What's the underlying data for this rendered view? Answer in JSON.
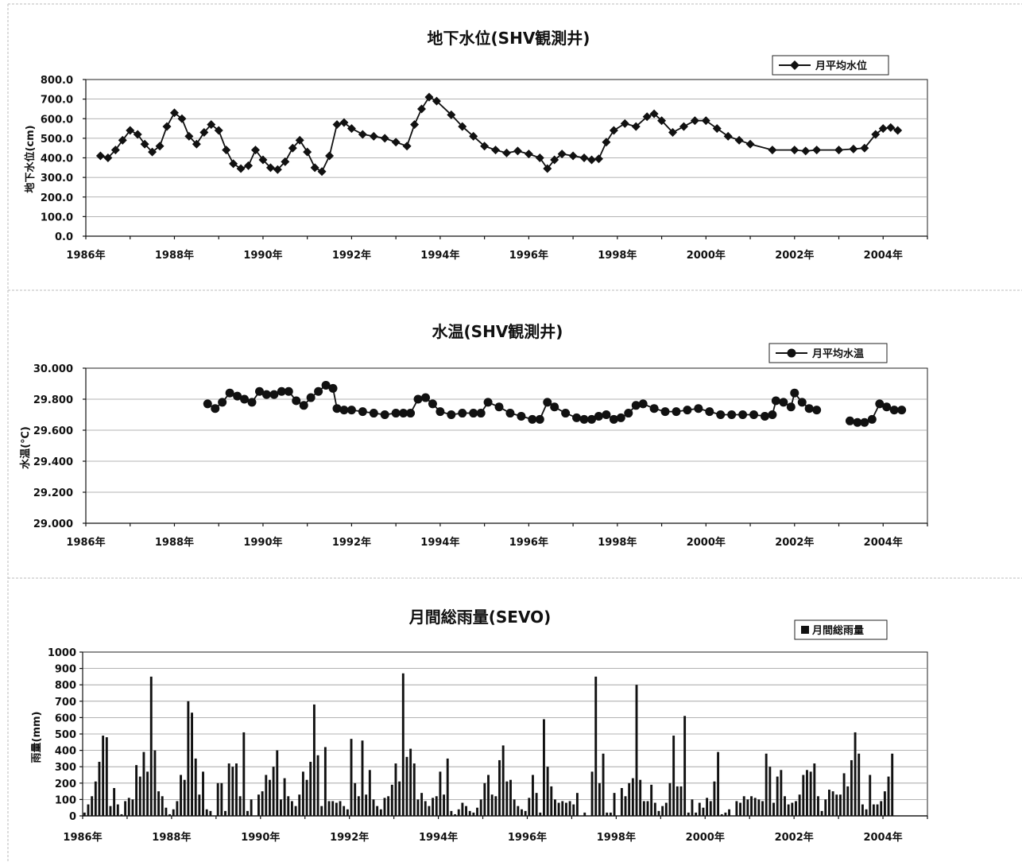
{
  "chart_data": [
    {
      "type": "line",
      "title": "地下水位(SHV観測井)",
      "ylabel": "地下水位(cm)",
      "xlabel": "",
      "ylim": [
        0,
        800
      ],
      "yticks": [
        "0.0",
        "100.0",
        "200.0",
        "300.0",
        "400.0",
        "500.0",
        "600.0",
        "700.0",
        "800.0"
      ],
      "xlim": [
        1986,
        2005
      ],
      "xticks": [
        "1986年",
        "1988年",
        "1990年",
        "1992年",
        "1994年",
        "1996年",
        "1998年",
        "2000年",
        "2002年",
        "2004年"
      ],
      "grid": true,
      "legend": "top-right",
      "marker": "diamond",
      "series": [
        {
          "name": "月平均水位",
          "x": [
            1986.33,
            1986.5,
            1986.67,
            1986.83,
            1987.0,
            1987.17,
            1987.33,
            1987.5,
            1987.67,
            1987.83,
            1988.0,
            1988.17,
            1988.33,
            1988.5,
            1988.67,
            1988.83,
            1989.0,
            1989.17,
            1989.33,
            1989.5,
            1989.67,
            1989.83,
            1990.0,
            1990.17,
            1990.33,
            1990.5,
            1990.67,
            1990.83,
            1991.0,
            1991.17,
            1991.33,
            1991.5,
            1991.67,
            1991.83,
            1992.0,
            1992.25,
            1992.5,
            1992.75,
            1993.0,
            1993.25,
            1993.42,
            1993.58,
            1993.75,
            1993.92,
            1994.25,
            1994.5,
            1994.75,
            1995.0,
            1995.25,
            1995.5,
            1995.75,
            1996.0,
            1996.25,
            1996.42,
            1996.58,
            1996.75,
            1997.0,
            1997.25,
            1997.42,
            1997.58,
            1997.75,
            1997.92,
            1998.17,
            1998.42,
            1998.67,
            1998.83,
            1999.0,
            1999.25,
            1999.5,
            1999.75,
            2000.0,
            2000.25,
            2000.5,
            2000.75,
            2001.0,
            2001.5,
            2002.0,
            2002.25,
            2002.5,
            2003.0,
            2003.33,
            2003.58,
            2003.83,
            2004.0,
            2004.17,
            2004.33
          ],
          "values": [
            410,
            400,
            440,
            490,
            540,
            520,
            470,
            430,
            460,
            560,
            630,
            600,
            510,
            470,
            530,
            570,
            540,
            440,
            370,
            345,
            360,
            440,
            390,
            350,
            340,
            380,
            450,
            490,
            430,
            350,
            330,
            410,
            570,
            580,
            550,
            520,
            510,
            500,
            480,
            460,
            570,
            650,
            710,
            690,
            620,
            560,
            510,
            460,
            440,
            425,
            435,
            420,
            400,
            345,
            390,
            420,
            410,
            400,
            390,
            395,
            480,
            540,
            575,
            560,
            610,
            625,
            590,
            530,
            560,
            590,
            590,
            550,
            510,
            490,
            470,
            440,
            440,
            435,
            440,
            440,
            445,
            450,
            520,
            550,
            555,
            540
          ]
        }
      ]
    },
    {
      "type": "line",
      "title": "水温(SHV観測井)",
      "ylabel": "水温(℃)",
      "xlabel": "",
      "ylim": [
        29.0,
        30.0
      ],
      "yticks": [
        "29.000",
        "29.200",
        "29.400",
        "29.600",
        "29.800",
        "30.000"
      ],
      "xlim": [
        1986,
        2005
      ],
      "xticks": [
        "1986年",
        "1988年",
        "1990年",
        "1992年",
        "1994年",
        "1996年",
        "1998年",
        "2000年",
        "2002年",
        "2004年"
      ],
      "grid": true,
      "legend": "top-right",
      "marker": "circle",
      "series": [
        {
          "name": "月平均水温",
          "segments": [
            {
              "x": [
                1988.75,
                1988.92,
                1989.08,
                1989.25,
                1989.42,
                1989.58,
                1989.75,
                1989.92,
                1990.08,
                1990.25,
                1990.42,
                1990.58,
                1990.75,
                1990.92,
                1991.08,
                1991.25,
                1991.42,
                1991.58,
                1991.67,
                1991.83,
                1992.0,
                1992.25,
                1992.5,
                1992.75,
                1993.0,
                1993.17,
                1993.33,
                1993.5,
                1993.67,
                1993.83,
                1994.0,
                1994.25,
                1994.5,
                1994.75,
                1994.92,
                1995.08,
                1995.33,
                1995.58,
                1995.83,
                1996.08,
                1996.25,
                1996.42,
                1996.58,
                1996.83,
                1997.08,
                1997.25
              ],
              "values": [
                29.77,
                29.74,
                29.78,
                29.84,
                29.82,
                29.8,
                29.78,
                29.85,
                29.83,
                29.83,
                29.85,
                29.85,
                29.79,
                29.76,
                29.81,
                29.85,
                29.89,
                29.87,
                29.74,
                29.73,
                29.73,
                29.72,
                29.71,
                29.7,
                29.71,
                29.71,
                29.71,
                29.8,
                29.81,
                29.77,
                29.72,
                29.7,
                29.71,
                29.71,
                29.71,
                29.78,
                29.75,
                29.71,
                29.69,
                29.67,
                29.67,
                29.78,
                29.75,
                29.71,
                29.68,
                29.67
              ]
            },
            {
              "x": [
                1997.42,
                1997.58,
                1997.75,
                1997.92,
                1998.08,
                1998.25,
                1998.42,
                1998.58,
                1998.83,
                1999.08,
                1999.33,
                1999.58,
                1999.83,
                2000.08,
                2000.33,
                2000.58,
                2000.83,
                2001.08,
                2001.33,
                2001.5,
                2001.58,
                2001.75,
                2001.92,
                2002.0,
                2002.17,
                2002.33,
                2002.5
              ],
              "values": [
                29.67,
                29.69,
                29.7,
                29.67,
                29.68,
                29.71,
                29.76,
                29.77,
                29.74,
                29.72,
                29.72,
                29.73,
                29.74,
                29.72,
                29.7,
                29.7,
                29.7,
                29.7,
                29.69,
                29.7,
                29.79,
                29.78,
                29.75,
                29.84,
                29.78,
                29.74,
                29.73
              ]
            },
            {
              "x": [
                2003.25,
                2003.42,
                2003.58,
                2003.75,
                2003.92,
                2004.08,
                2004.25,
                2004.42
              ],
              "values": [
                29.66,
                29.65,
                29.65,
                29.67,
                29.77,
                29.75,
                29.73,
                29.73
              ]
            }
          ]
        }
      ]
    },
    {
      "type": "bar",
      "title": "月間総雨量(SEVO)",
      "ylabel": "雨量(mm)",
      "xlabel": "",
      "ylim": [
        0,
        1000
      ],
      "yticks": [
        "0",
        "100",
        "200",
        "300",
        "400",
        "500",
        "600",
        "700",
        "800",
        "900",
        "1000"
      ],
      "xlim": [
        1986,
        2005
      ],
      "xticks": [
        "1986年",
        "1988年",
        "1990年",
        "1992年",
        "1994年",
        "1996年",
        "1998年",
        "2000年",
        "2002年",
        "2004年"
      ],
      "grid": true,
      "legend": "top-right",
      "x_start": 1986.0,
      "x_step_months": 1,
      "series": [
        {
          "name": "月間総雨量",
          "values": [
            20,
            70,
            120,
            210,
            330,
            490,
            480,
            60,
            170,
            70,
            10,
            90,
            110,
            100,
            310,
            240,
            390,
            270,
            850,
            400,
            150,
            120,
            50,
            10,
            40,
            90,
            250,
            220,
            700,
            630,
            350,
            130,
            270,
            40,
            30,
            0,
            200,
            200,
            30,
            320,
            300,
            320,
            120,
            510,
            30,
            100,
            0,
            130,
            150,
            250,
            220,
            300,
            400,
            100,
            230,
            120,
            90,
            60,
            130,
            270,
            220,
            330,
            680,
            370,
            60,
            420,
            90,
            90,
            80,
            90,
            60,
            40,
            470,
            200,
            120,
            460,
            130,
            280,
            100,
            60,
            40,
            110,
            120,
            190,
            320,
            210,
            870,
            360,
            410,
            320,
            100,
            140,
            90,
            60,
            110,
            120,
            270,
            130,
            350,
            30,
            10,
            40,
            80,
            60,
            30,
            20,
            50,
            100,
            200,
            250,
            130,
            120,
            340,
            430,
            210,
            220,
            100,
            60,
            40,
            30,
            110,
            250,
            140,
            20,
            590,
            300,
            180,
            100,
            80,
            90,
            80,
            90,
            70,
            140,
            0,
            20,
            0,
            270,
            850,
            200,
            380,
            20,
            20,
            140,
            0,
            170,
            120,
            200,
            230,
            800,
            220,
            90,
            90,
            190,
            80,
            30,
            60,
            80,
            200,
            490,
            180,
            180,
            610,
            20,
            100,
            20,
            80,
            50,
            110,
            90,
            210,
            390,
            10,
            20,
            40,
            0,
            90,
            80,
            120,
            100,
            120,
            110,
            100,
            90,
            380,
            300,
            80,
            240,
            280,
            120,
            70,
            80,
            90,
            130,
            250,
            280,
            270,
            320,
            120,
            30,
            100,
            160,
            150,
            130,
            130,
            260,
            180,
            340,
            510,
            380,
            70,
            40,
            250,
            70,
            70,
            90,
            150,
            240,
            380
          ]
        }
      ]
    }
  ]
}
